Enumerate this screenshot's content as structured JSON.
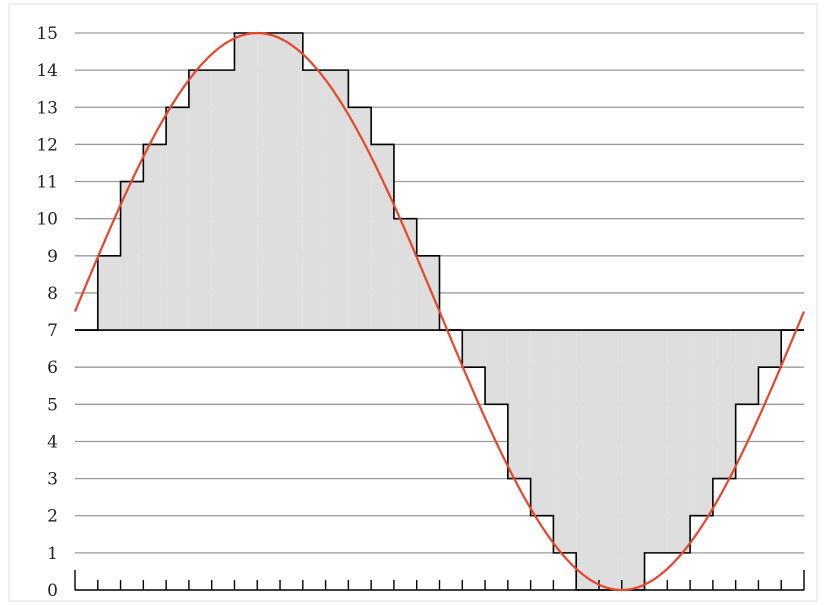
{
  "chart_data": {
    "type": "line",
    "title": "",
    "xlabel": "",
    "ylabel": "",
    "ylim": [
      0,
      15
    ],
    "y_ticks": [
      "0",
      "1",
      "2",
      "3",
      "4",
      "5",
      "6",
      "7",
      "8",
      "9",
      "10",
      "11",
      "12",
      "13",
      "14",
      "15"
    ],
    "grid": true,
    "legend": "none",
    "baseline": 7,
    "sample_count": 32,
    "series": [
      {
        "kind": "quantized-step",
        "values": [
          7,
          9,
          11,
          12,
          13,
          14,
          14,
          15,
          15,
          15,
          14,
          14,
          13,
          12,
          10,
          9,
          7,
          6,
          5,
          3,
          2,
          1,
          0,
          0,
          0,
          1,
          1,
          2,
          3,
          5,
          6,
          7
        ],
        "color": "#000000",
        "fill": "#dedede"
      },
      {
        "kind": "analog-sine",
        "amplitude": 7.5,
        "offset": 7.5,
        "periods": 1,
        "color": "#e8462a"
      }
    ]
  }
}
